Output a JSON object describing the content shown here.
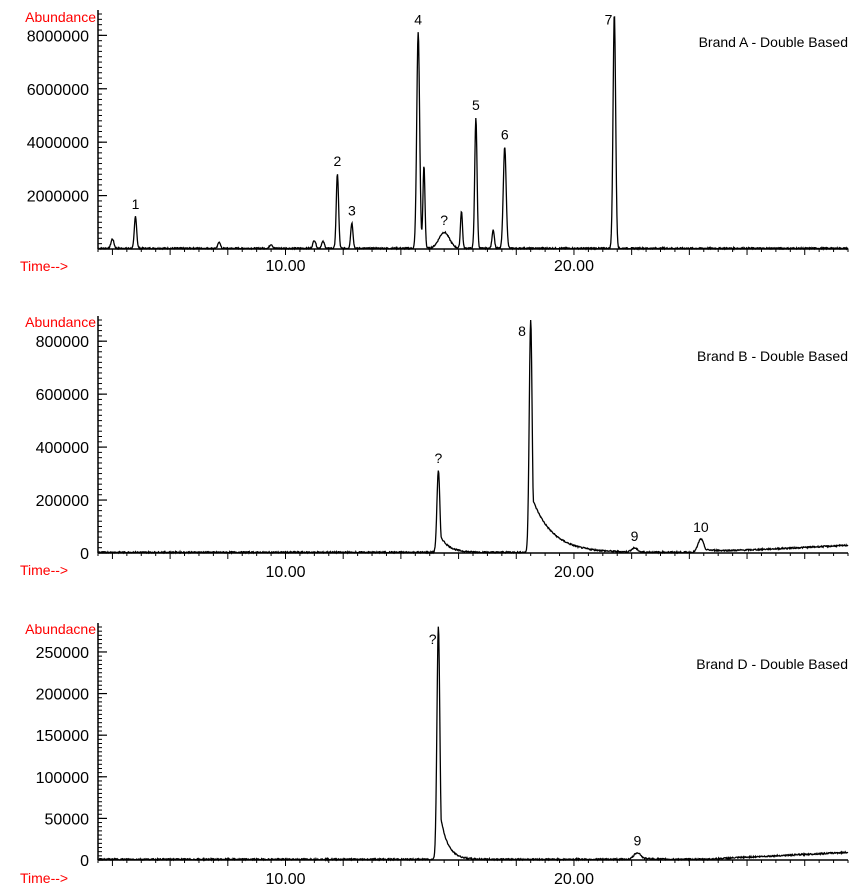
{
  "colors": {
    "axis_label": "#ff0000",
    "trace": "#000000"
  },
  "chart_data": [
    {
      "type": "line",
      "ylabel": "Abundance",
      "xlabel": "Time-->",
      "legend_text": "Brand A - Double Based",
      "xlim": [
        3.5,
        29.5
      ],
      "ylim": [
        0,
        8800000
      ],
      "yticks": [
        2000000,
        4000000,
        6000000,
        8000000
      ],
      "ytick_labels": [
        "2000000",
        "4000000",
        "6000000",
        "8000000"
      ],
      "xticks": [
        10,
        20
      ],
      "xtick_labels": [
        "10.00",
        "20.00"
      ],
      "peaks": [
        {
          "t": 4.0,
          "h": 350000,
          "w": 0.05
        },
        {
          "t": 4.8,
          "h": 1200000,
          "w": 0.04
        },
        {
          "t": 7.7,
          "h": 250000,
          "w": 0.04
        },
        {
          "t": 9.5,
          "h": 150000,
          "w": 0.05
        },
        {
          "t": 11.0,
          "h": 300000,
          "w": 0.05
        },
        {
          "t": 11.3,
          "h": 250000,
          "w": 0.05
        },
        {
          "t": 11.8,
          "h": 2800000,
          "w": 0.04
        },
        {
          "t": 12.3,
          "h": 950000,
          "w": 0.04
        },
        {
          "t": 14.6,
          "h": 8100000,
          "w": 0.05
        },
        {
          "t": 14.8,
          "h": 3100000,
          "w": 0.035
        },
        {
          "t": 15.5,
          "h": 600000,
          "w": 0.18
        },
        {
          "t": 16.1,
          "h": 1400000,
          "w": 0.035
        },
        {
          "t": 16.6,
          "h": 4900000,
          "w": 0.04
        },
        {
          "t": 17.2,
          "h": 700000,
          "w": 0.04
        },
        {
          "t": 17.6,
          "h": 3800000,
          "w": 0.05
        },
        {
          "t": 21.4,
          "h": 8800000,
          "w": 0.045
        }
      ],
      "peak_labels": [
        {
          "text": "1",
          "t": 4.8,
          "h": 1200000
        },
        {
          "text": "2",
          "t": 11.8,
          "h": 2800000
        },
        {
          "text": "3",
          "t": 12.3,
          "h": 950000
        },
        {
          "text": "4",
          "t": 14.6,
          "h": 8100000
        },
        {
          "text": "?",
          "t": 15.5,
          "h": 600000
        },
        {
          "text": "5",
          "t": 16.6,
          "h": 4900000
        },
        {
          "text": "6",
          "t": 17.6,
          "h": 3800000
        },
        {
          "text": "7",
          "t": 21.2,
          "h": 8100000
        }
      ]
    },
    {
      "type": "line",
      "ylabel": "Abundance",
      "xlabel": "Time-->",
      "legend_text": "Brand B - Double Based",
      "xlim": [
        3.5,
        29.5
      ],
      "ylim": [
        0,
        880000
      ],
      "yticks": [
        0,
        200000,
        400000,
        600000,
        800000
      ],
      "ytick_labels": [
        "0",
        "200000",
        "400000",
        "600000",
        "800000"
      ],
      "xticks": [
        10,
        20
      ],
      "xtick_labels": [
        "10.00",
        "20.00"
      ],
      "peaks": [
        {
          "t": 15.3,
          "h": 310000,
          "w": 0.05,
          "tail": 0.3
        },
        {
          "t": 18.5,
          "h": 880000,
          "w": 0.05,
          "tail": 0.7
        },
        {
          "t": 22.1,
          "h": 15000,
          "w": 0.1
        },
        {
          "t": 24.4,
          "h": 50000,
          "w": 0.1,
          "tail": 0.6
        }
      ],
      "peak_labels": [
        {
          "text": "?",
          "t": 15.3,
          "h": 310000
        },
        {
          "text": "8",
          "t": 18.2,
          "h": 790000
        },
        {
          "text": "9",
          "t": 22.1,
          "h": 15000
        },
        {
          "text": "10",
          "t": 24.4,
          "h": 50000
        }
      ]
    },
    {
      "type": "line",
      "ylabel": "Abundacne",
      "xlabel": "Time-->",
      "legend_text": "Brand D - Double Based",
      "xlim": [
        3.5,
        29.5
      ],
      "ylim": [
        0,
        280000
      ],
      "yticks": [
        0,
        50000,
        100000,
        150000,
        200000,
        250000
      ],
      "ytick_labels": [
        "0",
        "50000",
        "100000",
        "150000",
        "200000",
        "250000"
      ],
      "xticks": [
        10,
        20
      ],
      "xtick_labels": [
        "10.00",
        "20.00"
      ],
      "peaks": [
        {
          "t": 15.3,
          "h": 280000,
          "w": 0.05,
          "tail": 0.25
        },
        {
          "t": 22.2,
          "h": 8000,
          "w": 0.12,
          "tail": 0.4
        }
      ],
      "peak_labels": [
        {
          "text": "?",
          "t": 15.1,
          "h": 250000
        },
        {
          "text": "9",
          "t": 22.2,
          "h": 8000
        }
      ]
    }
  ]
}
